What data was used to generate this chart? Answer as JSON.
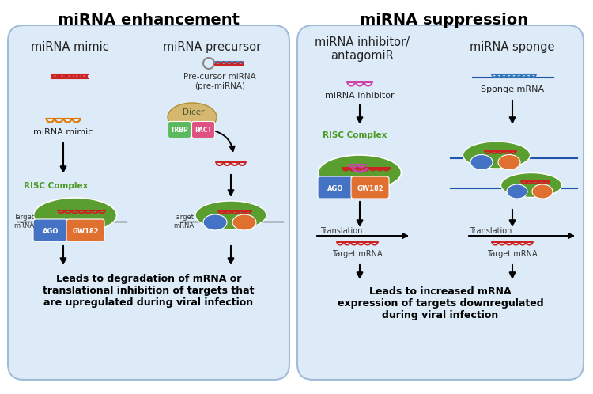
{
  "title_left": "miRNA enhancement",
  "title_right": "miRNA suppression",
  "bg_color": "#ffffff",
  "box_color": "#ddeaf7",
  "box_edge": "#a0bcd8",
  "enhancement_sub_left": "miRNA mimic",
  "enhancement_sub_right": "miRNA precursor",
  "suppression_sub_left": "miRNA inhibitor/\nantagomiR",
  "suppression_sub_right": "miRNA sponge",
  "precursor_label": "Pre-cursor miRNA\n(pre-miRNA)",
  "dicer_label": "Dicer",
  "trbp_label": "TRBP",
  "pact_label": "PACT",
  "mimic_label": "miRNA mimic",
  "risc_label": "RISC Complex",
  "ago_label": "AGO",
  "gw182_label": "GW182",
  "target_mrna_label": "Target\nmRNA",
  "inhibitor_label": "miRNA inhibitor",
  "sponge_mrna_label": "Sponge mRNA",
  "translation_label": "Translation",
  "target_mrna_label2": "Target mRNA",
  "left_conclusion": "Leads to degradation of mRNA or\ntranslational inhibition of targets that\nare upregulated during viral infection",
  "right_conclusion": "Leads to increased mRNA\nexpression of targets downregulated\nduring viral infection",
  "c_red": "#cc2222",
  "c_orange": "#e07800",
  "c_green_risc_text": "#4a9a20",
  "c_green_body": "#5a9e30",
  "c_blue_ago": "#4472c4",
  "c_orange_gw": "#e07030",
  "c_green_trbp": "#5cb85c",
  "c_pink_pact": "#e05080",
  "c_dicer": "#d4b870",
  "c_magenta": "#cc44aa",
  "c_sponge_blue": "#3377bb",
  "c_sponge_line": "#2255aa"
}
